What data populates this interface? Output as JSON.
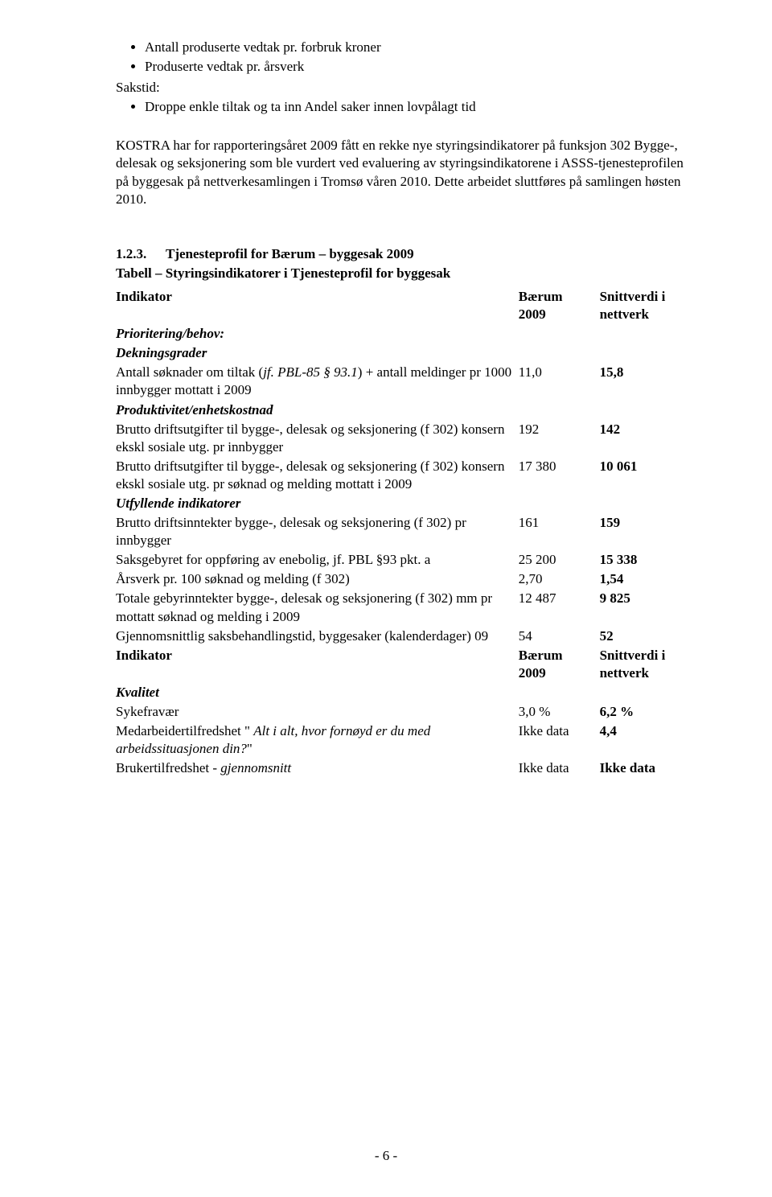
{
  "bullets1": [
    "Antall produserte vedtak pr. forbruk kroner",
    "Produserte vedtak pr. årsverk"
  ],
  "label_sakstid": "Sakstid:",
  "bullets2": [
    "Droppe enkle tiltak og ta inn Andel saker innen lovpålagt tid"
  ],
  "para1": "KOSTRA har for rapporteringsåret 2009 fått en rekke nye styringsindikatorer på funksjon 302 Bygge-, delesak og seksjonering som ble vurdert ved evaluering av styringsindikatorene i ASSS-tjenesteprofilen på byggesak på nettverkesamlingen i Tromsø våren 2010. Dette arbeidet sluttføres på samlingen høsten 2010.",
  "heading": {
    "num": "1.2.3.",
    "text": "Tjenesteprofil for Bærum – byggesak 2009"
  },
  "table": {
    "title": "Tabell – Styringsindikatorer i Tjenesteprofil for byggesak",
    "header1": {
      "label": "Indikator",
      "v1a": "Bærum",
      "v1b": "2009",
      "v2": "Snittverdi i nettverk"
    },
    "row_pb": "Prioritering/behov:",
    "row_dg": "Dekningsgrader",
    "row_antall": {
      "l1": "Antall søknader om tiltak (",
      "l2": "jf. PBL-85 § 93.1",
      "l3": ") + antall meldinger pr 1000 innbygger mottatt i 2009",
      "v1": "11,0",
      "v2": "15,8"
    },
    "row_prod": "Produktivitet/enhetskostnad",
    "row_b1": {
      "l": "Brutto driftsutgifter til bygge-, delesak og seksjonering (f 302) konsern ekskl sosiale utg. pr innbygger",
      "v1": "192",
      "v2": "142"
    },
    "row_b2": {
      "l": "Brutto driftsutgifter til bygge-, delesak og seksjonering (f 302) konsern ekskl sosiale utg. pr søknad og melding mottatt i 2009",
      "v1": "17 380",
      "v2": "10 061"
    },
    "row_utf": "Utfyllende indikatorer",
    "row_bi": {
      "l": "Brutto driftsinntekter bygge-, delesak og seksjonering (f 302) pr innbygger",
      "v1": "161",
      "v2": "159"
    },
    "row_saks": {
      "l": "Saksgebyret for oppføring av enebolig, jf. PBL §93 pkt. a",
      "v1": "25 200",
      "v2": "15 338"
    },
    "row_ars": {
      "l": "Årsverk pr. 100 søknad og melding (f 302)",
      "v1": "2,70",
      "v2": "1,54"
    },
    "row_tot": {
      "l": "Totale gebyrinntekter bygge-, delesak og seksjonering (f 302) mm pr mottatt søknad og melding i 2009",
      "v1": "12 487",
      "v2": "9 825"
    },
    "row_gj": {
      "l": "Gjennomsnittlig saksbehandlingstid, byggesaker (kalenderdager) 09",
      "v1": "54",
      "v2": "52"
    },
    "header2": {
      "label": "Indikator",
      "v1a": "Bærum",
      "v1b": "2009",
      "v2": "Snittverdi i nettverk"
    },
    "row_kval": "Kvalitet",
    "row_syke": {
      "l": "Sykefravær",
      "v1": "3,0 %",
      "v2": "6,2 %"
    },
    "row_med": {
      "l1": "Medarbeidertilfredshet \" ",
      "l2": "Alt i alt, hvor fornøyd er du med arbeidssituasjonen din?",
      "l3": "\"",
      "v1": "Ikke data",
      "v2": "4,4"
    },
    "row_bruk": {
      "l1": "Brukertilfredshet - ",
      "l2": "gjennomsnitt",
      "v1": "Ikke data",
      "v2": "Ikke data"
    }
  },
  "page_num": "- 6 -"
}
